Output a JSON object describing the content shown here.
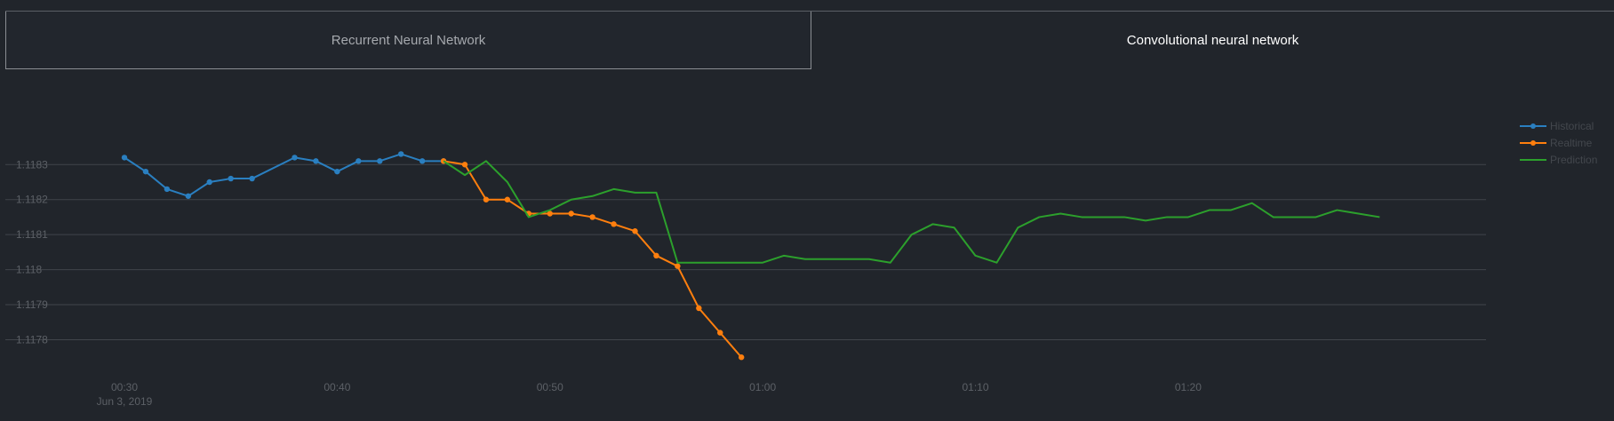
{
  "tabs": [
    {
      "label": "Recurrent Neural Network",
      "active": false
    },
    {
      "label": "Convolutional neural network",
      "active": true
    }
  ],
  "colors": {
    "historical": "#2a7fc0",
    "realtime": "#ff7f0e",
    "prediction": "#2ca02c",
    "grid": "#41454b"
  },
  "chart_data": {
    "type": "line",
    "title": "",
    "xlabel": "",
    "ylabel": "",
    "x_ticks": [
      {
        "t": "00:30",
        "label": "00:30",
        "sublabel": "Jun 3, 2019"
      },
      {
        "t": "00:40",
        "label": "00:40",
        "sublabel": ""
      },
      {
        "t": "00:50",
        "label": "00:50",
        "sublabel": ""
      },
      {
        "t": "01:00",
        "label": "01:00",
        "sublabel": ""
      },
      {
        "t": "01:10",
        "label": "01:10",
        "sublabel": ""
      },
      {
        "t": "01:20",
        "label": "01:20",
        "sublabel": ""
      }
    ],
    "y_ticks": [
      "1.1178",
      "1.1179",
      "1.118",
      "1.1181",
      "1.1182",
      "1.1183"
    ],
    "xlim": [
      "00:30",
      "01:34"
    ],
    "ylim": [
      1.11771,
      1.11843
    ],
    "grid": true,
    "legend_position": "right",
    "series": [
      {
        "name": "Historical",
        "color_key": "historical",
        "markers": true,
        "points": [
          [
            "00:30",
            1.11832
          ],
          [
            "00:31",
            1.11828
          ],
          [
            "00:32",
            1.11823
          ],
          [
            "00:33",
            1.11821
          ],
          [
            "00:34",
            1.11825
          ],
          [
            "00:35",
            1.11826
          ],
          [
            "00:36",
            1.11826
          ],
          [
            "00:38",
            1.11832
          ],
          [
            "00:39",
            1.11831
          ],
          [
            "00:40",
            1.11828
          ],
          [
            "00:41",
            1.11831
          ],
          [
            "00:42",
            1.11831
          ],
          [
            "00:43",
            1.11833
          ],
          [
            "00:44",
            1.11831
          ],
          [
            "00:45",
            1.11831
          ]
        ]
      },
      {
        "name": "Realtime",
        "color_key": "realtime",
        "markers": true,
        "points": [
          [
            "00:45",
            1.11831
          ],
          [
            "00:46",
            1.1183
          ],
          [
            "00:47",
            1.1182
          ],
          [
            "00:48",
            1.1182
          ],
          [
            "00:49",
            1.11816
          ],
          [
            "00:50",
            1.11816
          ],
          [
            "00:51",
            1.11816
          ],
          [
            "00:52",
            1.11815
          ],
          [
            "00:53",
            1.11813
          ],
          [
            "00:54",
            1.11811
          ],
          [
            "00:55",
            1.11804
          ],
          [
            "00:56",
            1.11801
          ],
          [
            "00:57",
            1.11789
          ],
          [
            "00:58",
            1.11782
          ],
          [
            "00:59",
            1.11775
          ]
        ]
      },
      {
        "name": "Prediction",
        "color_key": "prediction",
        "markers": false,
        "points": [
          [
            "00:45",
            1.11831
          ],
          [
            "00:46",
            1.11827
          ],
          [
            "00:47",
            1.11831
          ],
          [
            "00:48",
            1.11825
          ],
          [
            "00:49",
            1.11815
          ],
          [
            "00:50",
            1.11817
          ],
          [
            "00:51",
            1.1182
          ],
          [
            "00:52",
            1.11821
          ],
          [
            "00:53",
            1.11823
          ],
          [
            "00:54",
            1.11822
          ],
          [
            "00:55",
            1.11822
          ],
          [
            "00:56",
            1.11802
          ],
          [
            "01:00",
            1.11802
          ],
          [
            "01:01",
            1.11804
          ],
          [
            "01:02",
            1.11803
          ],
          [
            "01:03",
            1.11803
          ],
          [
            "01:05",
            1.11803
          ],
          [
            "01:06",
            1.11802
          ],
          [
            "01:07",
            1.1181
          ],
          [
            "01:08",
            1.11813
          ],
          [
            "01:09",
            1.11812
          ],
          [
            "01:10",
            1.11804
          ],
          [
            "01:11",
            1.11802
          ],
          [
            "01:12",
            1.11812
          ],
          [
            "01:13",
            1.11815
          ],
          [
            "01:14",
            1.11816
          ],
          [
            "01:15",
            1.11815
          ],
          [
            "01:17",
            1.11815
          ],
          [
            "01:18",
            1.11814
          ],
          [
            "01:19",
            1.11815
          ],
          [
            "01:20",
            1.11815
          ],
          [
            "01:21",
            1.11817
          ],
          [
            "01:22",
            1.11817
          ],
          [
            "01:23",
            1.11819
          ],
          [
            "01:24",
            1.11815
          ],
          [
            "01:26",
            1.11815
          ],
          [
            "01:27",
            1.11817
          ],
          [
            "01:28",
            1.11816
          ],
          [
            "01:29",
            1.11815
          ]
        ]
      }
    ]
  }
}
